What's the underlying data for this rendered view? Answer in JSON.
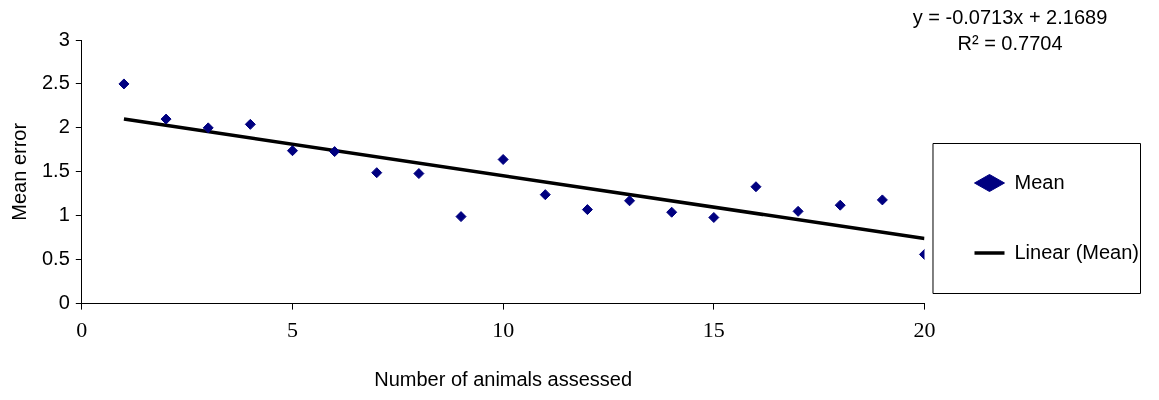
{
  "chart_data": {
    "type": "scatter",
    "xlabel": "Number of animals assessed",
    "ylabel": "Mean error",
    "x": [
      1,
      2,
      3,
      4,
      5,
      6,
      7,
      8,
      9,
      10,
      11,
      12,
      13,
      14,
      15,
      16,
      17,
      18,
      19,
      20
    ],
    "series": [
      {
        "name": "Mean",
        "type": "scatter",
        "color": "#000080",
        "marker": "diamond",
        "values": [
          2.5,
          2.1,
          2.0,
          2.04,
          1.74,
          1.73,
          1.49,
          1.48,
          0.99,
          1.64,
          1.24,
          1.07,
          1.17,
          1.04,
          0.98,
          1.33,
          1.05,
          1.12,
          1.18,
          0.56
        ]
      },
      {
        "name": "Linear (Mean)",
        "type": "line",
        "color": "#000000",
        "marker": "none",
        "x": [
          1,
          20
        ],
        "values": [
          2.1,
          0.74
        ]
      }
    ],
    "xlim": [
      0,
      20
    ],
    "xticks": [
      0,
      5,
      10,
      15,
      20
    ],
    "ylim": [
      0,
      3
    ],
    "yticks": [
      0,
      0.5,
      1,
      1.5,
      2,
      2.5,
      3
    ],
    "grid": false,
    "legend": "right",
    "annotations": [
      "y = -0.0713x + 2.1689",
      "R² = 0.7704"
    ]
  }
}
